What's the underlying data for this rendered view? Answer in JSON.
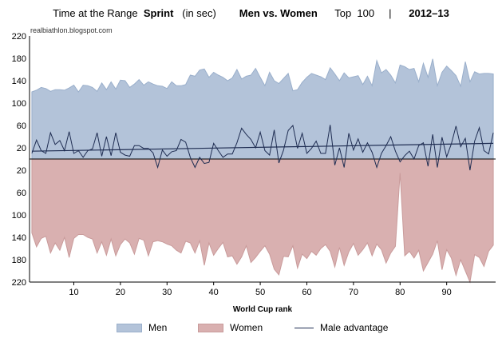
{
  "header": {
    "part1": "Time at the Range",
    "part2": "Sprint",
    "part3": "(in sec)",
    "part4": "Men vs. Women",
    "part5": "Top  100",
    "part6": "|",
    "part7": "2012–13"
  },
  "watermark": "realbiathlon.blogspot.com",
  "colors": {
    "men_fill": "#b3c3d9",
    "men_line": "#9aafcb",
    "women_fill": "#d9b0b0",
    "women_line": "#c99b9b",
    "advantage_line": "#1f2d52",
    "axis": "#000000",
    "grid": "#d9d9d9"
  },
  "chart_data": {
    "type": "area",
    "xlabel": "World Cup rank",
    "ylabel": "",
    "x_ticks": [
      10,
      20,
      30,
      40,
      50,
      60,
      70,
      80,
      90
    ],
    "y_tick_labels_top": [
      "220",
      "180",
      "140",
      "100",
      "60",
      "20"
    ],
    "y_tick_labels_bottom": [
      "20",
      "60",
      "100",
      "140",
      "180",
      "220"
    ],
    "ylim_men": [
      0,
      220
    ],
    "ylim_women": [
      0,
      220
    ],
    "legend_position": "bottom",
    "series": [
      {
        "name": "Men",
        "x": [
          1,
          2,
          3,
          4,
          5,
          6,
          7,
          8,
          9,
          10,
          11,
          12,
          13,
          14,
          15,
          16,
          17,
          18,
          19,
          20,
          21,
          22,
          23,
          24,
          25,
          26,
          27,
          28,
          29,
          30,
          31,
          32,
          33,
          34,
          35,
          36,
          37,
          38,
          39,
          40,
          41,
          42,
          43,
          44,
          45,
          46,
          47,
          48,
          49,
          50,
          51,
          52,
          53,
          54,
          55,
          56,
          57,
          58,
          59,
          60,
          61,
          62,
          63,
          64,
          65,
          66,
          67,
          68,
          69,
          70,
          71,
          72,
          73,
          74,
          75,
          76,
          77,
          78,
          79,
          80,
          81,
          82,
          83,
          84,
          85,
          86,
          87,
          88,
          89,
          90,
          91,
          92,
          93,
          94,
          95,
          96,
          97,
          98,
          99,
          100
        ],
        "values": [
          120,
          123,
          128,
          126,
          121,
          124,
          124,
          123,
          127,
          132,
          120,
          132,
          131,
          128,
          121,
          136,
          124,
          138,
          125,
          141,
          140,
          128,
          134,
          142,
          132,
          138,
          134,
          131,
          130,
          126,
          138,
          131,
          131,
          133,
          150,
          148,
          159,
          161,
          146,
          155,
          150,
          146,
          140,
          145,
          160,
          143,
          148,
          150,
          162,
          146,
          131,
          155,
          140,
          135,
          144,
          153,
          122,
          124,
          137,
          146,
          153,
          150,
          147,
          142,
          163,
          152,
          140,
          154,
          145,
          147,
          149,
          133,
          148,
          131,
          176,
          154,
          160,
          150,
          136,
          168,
          165,
          160,
          162,
          138,
          171,
          146,
          179,
          131,
          155,
          166,
          158,
          149,
          130,
          174,
          138,
          156,
          152,
          153,
          153,
          152
        ]
      },
      {
        "name": "Women",
        "x": [
          1,
          2,
          3,
          4,
          5,
          6,
          7,
          8,
          9,
          10,
          11,
          12,
          13,
          14,
          15,
          16,
          17,
          18,
          19,
          20,
          21,
          22,
          23,
          24,
          25,
          26,
          27,
          28,
          29,
          30,
          31,
          32,
          33,
          34,
          35,
          36,
          37,
          38,
          39,
          40,
          41,
          42,
          43,
          44,
          45,
          46,
          47,
          48,
          49,
          50,
          51,
          52,
          53,
          54,
          55,
          56,
          57,
          58,
          59,
          60,
          61,
          62,
          63,
          64,
          65,
          66,
          67,
          68,
          69,
          70,
          71,
          72,
          73,
          74,
          75,
          76,
          77,
          78,
          79,
          80,
          81,
          82,
          83,
          84,
          85,
          86,
          87,
          88,
          89,
          90,
          91,
          92,
          93,
          94,
          95,
          96,
          97,
          98,
          99,
          100
        ],
        "values": [
          132,
          157,
          142,
          138,
          168,
          150,
          163,
          140,
          176,
          142,
          135,
          135,
          140,
          143,
          168,
          148,
          172,
          143,
          173,
          153,
          143,
          150,
          170,
          142,
          145,
          173,
          148,
          146,
          148,
          152,
          155,
          163,
          168,
          147,
          150,
          168,
          146,
          190,
          150,
          172,
          160,
          149,
          175,
          173,
          188,
          175,
          155,
          185,
          176,
          165,
          155,
          170,
          197,
          207,
          174,
          175,
          155,
          195,
          170,
          178,
          165,
          172,
          160,
          153,
          165,
          193,
          158,
          190,
          166,
          151,
          172,
          162,
          150,
          173,
          152,
          162,
          186,
          168,
          156,
          25,
          173,
          165,
          177,
          163,
          200,
          185,
          170,
          146,
          198,
          162,
          177,
          208,
          180,
          200,
          220,
          171,
          176,
          192,
          165,
          154
        ]
      },
      {
        "name": "Male advantage",
        "x": [
          1,
          2,
          3,
          4,
          5,
          6,
          7,
          8,
          9,
          10,
          11,
          12,
          13,
          14,
          15,
          16,
          17,
          18,
          19,
          20,
          21,
          22,
          23,
          24,
          25,
          26,
          27,
          28,
          29,
          30,
          31,
          32,
          33,
          34,
          35,
          36,
          37,
          38,
          39,
          40,
          41,
          42,
          43,
          44,
          45,
          46,
          47,
          48,
          49,
          50,
          51,
          52,
          53,
          54,
          55,
          56,
          57,
          58,
          59,
          60,
          61,
          62,
          63,
          64,
          65,
          66,
          67,
          68,
          69,
          70,
          71,
          72,
          73,
          74,
          75,
          76,
          77,
          78,
          79,
          80,
          81,
          82,
          83,
          84,
          85,
          86,
          87,
          88,
          89,
          90,
          91,
          92,
          93,
          94,
          95,
          96,
          97,
          98,
          99,
          100
        ],
        "values": [
          10,
          34,
          15,
          10,
          47,
          26,
          33,
          15,
          49,
          10,
          15,
          3,
          15,
          18,
          47,
          5,
          40,
          6,
          47,
          12,
          7,
          5,
          24,
          24,
          19,
          19,
          11,
          -15,
          16,
          5,
          13,
          15,
          35,
          30,
          3,
          -15,
          3,
          -8,
          -6,
          28,
          15,
          3,
          9,
          9,
          29,
          55,
          44,
          35,
          20,
          48,
          15,
          7,
          52,
          -7,
          16,
          51,
          60,
          19,
          46,
          10,
          19,
          32,
          10,
          10,
          61,
          -11,
          20,
          -15,
          46,
          16,
          36,
          12,
          29,
          12,
          -15,
          10,
          24,
          40,
          14,
          -5,
          6,
          14,
          0,
          24,
          29,
          -13,
          44,
          -15,
          39,
          4,
          27,
          59,
          22,
          37,
          -20,
          32,
          56,
          15,
          9,
          47
        ]
      }
    ],
    "reference_line": {
      "name": "Male advantage trend",
      "start": 14,
      "end": 28
    }
  },
  "legend": {
    "men": "Men",
    "women": "Women",
    "advantage": "Male advantage"
  }
}
